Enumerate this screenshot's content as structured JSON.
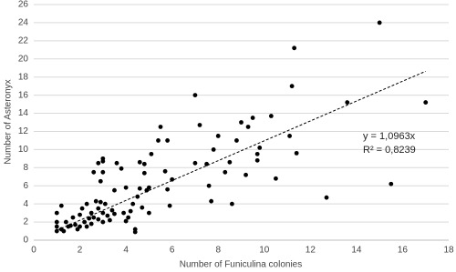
{
  "chart_data": {
    "type": "scatter",
    "x_label": "Number of Funiculina colonies",
    "y_label": "Number of Asteronyx",
    "xlim": [
      0,
      18
    ],
    "xticks": [
      0,
      2,
      4,
      6,
      8,
      10,
      12,
      14,
      16,
      18
    ],
    "ylim": [
      0,
      26
    ],
    "yticks": [
      0,
      2,
      4,
      6,
      8,
      10,
      12,
      14,
      16,
      18,
      20,
      22,
      24,
      26
    ],
    "grid": true,
    "color": "#000000",
    "x": [
      1,
      1,
      1,
      1,
      1.2,
      1.2,
      1.3,
      1.4,
      1.5,
      1.6,
      1.7,
      1.8,
      1.9,
      2,
      2,
      2.1,
      2.2,
      2.3,
      2.4,
      2.3,
      2.5,
      2.5,
      2.6,
      2.6,
      2.7,
      2.8,
      2.8,
      2.8,
      2.9,
      2.9,
      3,
      3,
      3,
      3,
      3,
      3.1,
      3.2,
      3.3,
      3.4,
      3.5,
      3.5,
      3.6,
      3.8,
      3.9,
      4,
      4,
      4.1,
      4.2,
      4.3,
      4.4,
      4.4,
      4.5,
      4.6,
      4.6,
      4.7,
      4.8,
      4.8,
      4.9,
      5,
      5,
      5.1,
      5.4,
      5.5,
      5.8,
      5.7,
      5.8,
      5.9,
      6,
      7,
      7,
      7.2,
      7.5,
      7.6,
      7.7,
      7.8,
      8,
      8.3,
      8.5,
      8.6,
      8.8,
      9,
      9.2,
      9.3,
      9.5,
      9.7,
      9.8,
      9.7,
      10.3,
      10.5,
      11.1,
      11.2,
      11.3,
      11.4,
      12.7,
      13.6,
      15,
      15.5,
      17
    ],
    "values": [
      1,
      1.5,
      2,
      3,
      3.8,
      1.2,
      1,
      2,
      1.5,
      1.6,
      2.5,
      1.7,
      1.2,
      2.8,
      1.5,
      3.5,
      2,
      4,
      2.4,
      1.5,
      3,
      1.8,
      2.5,
      7.5,
      4.3,
      8.5,
      3.5,
      2.3,
      4.2,
      6.5,
      2,
      3,
      8.7,
      9,
      7.5,
      4,
      2.7,
      2.2,
      3.3,
      2.9,
      5.5,
      8.5,
      7.9,
      3,
      2.1,
      5.8,
      2.5,
      3.2,
      4,
      0.9,
      1.2,
      4.8,
      5.7,
      8.6,
      3.6,
      7.4,
      8.4,
      5.5,
      3,
      5.8,
      9.5,
      11,
      12.5,
      11,
      7.6,
      5.6,
      3.8,
      6.7,
      16,
      8.5,
      12.7,
      8.4,
      6,
      4.3,
      10,
      11.5,
      7.5,
      8.6,
      4,
      11,
      13,
      7.2,
      12.5,
      13.5,
      8.8,
      10.2,
      9.5,
      13.7,
      6.8,
      11.5,
      17,
      21.2,
      9.6,
      4.7,
      15.2,
      24,
      6.2,
      15.2
    ],
    "trendline": {
      "slope": 1.0963,
      "xrange": [
        1,
        17
      ],
      "label": "y = 1,0963x",
      "r2": 0.8239,
      "r2_label": "R² = 0,8239"
    }
  }
}
